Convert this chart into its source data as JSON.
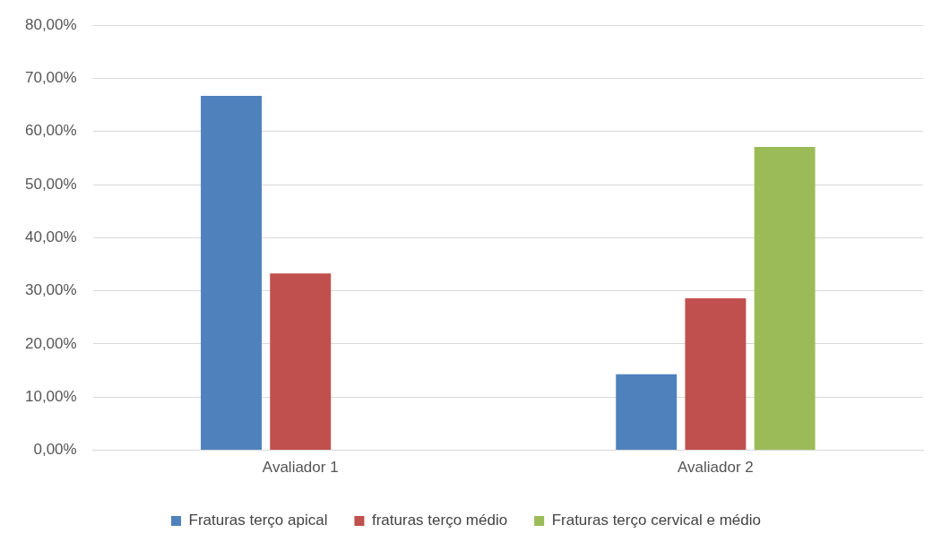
{
  "chart_data": {
    "type": "bar",
    "categories": [
      "Avaliador 1",
      "Avaliador 2"
    ],
    "series": [
      {
        "name": "Fraturas terço apical",
        "color": "#4f81bd",
        "values": [
          66.7,
          14.3
        ]
      },
      {
        "name": "fraturas terço médio",
        "color": "#c0504d",
        "values": [
          33.3,
          28.6
        ]
      },
      {
        "name": "Fraturas terço cervical e médio",
        "color": "#9bbb59",
        "values": [
          null,
          57.1
        ]
      }
    ],
    "ylim": [
      0,
      80
    ],
    "yticks": [
      {
        "value": 0,
        "label": "0,00%"
      },
      {
        "value": 10,
        "label": "10,00%"
      },
      {
        "value": 20,
        "label": "20,00%"
      },
      {
        "value": 30,
        "label": "30,00%"
      },
      {
        "value": 40,
        "label": "40,00%"
      },
      {
        "value": 50,
        "label": "50,00%"
      },
      {
        "value": 60,
        "label": "60,00%"
      },
      {
        "value": 70,
        "label": "70,00%"
      },
      {
        "value": 80,
        "label": "80,00%"
      }
    ],
    "grid": "y",
    "legend": "bottom"
  }
}
